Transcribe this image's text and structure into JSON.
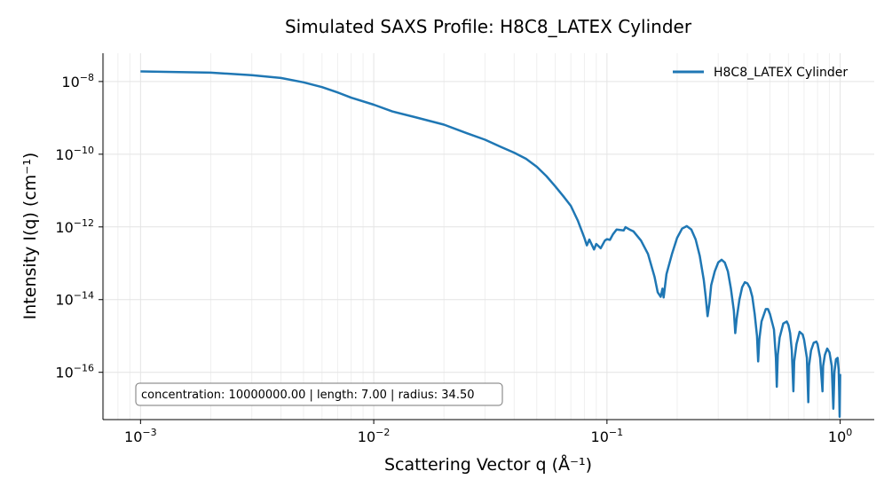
{
  "chart_data": {
    "type": "line",
    "title": "Simulated SAXS Profile: H8C8_LATEX Cylinder",
    "xlabel": "Scattering Vector q (Å⁻¹)",
    "ylabel": "Intensity I(q) (cm⁻¹)",
    "xscale": "log",
    "yscale": "log",
    "xlim": [
      0.00069,
      1.4
    ],
    "ylim": [
      5e-18,
      6e-08
    ],
    "grid": true,
    "legend_position": "top-right",
    "x_ticks": [
      {
        "value": 0.001,
        "mant": "10",
        "exp": "−3"
      },
      {
        "value": 0.01,
        "mant": "10",
        "exp": "−2"
      },
      {
        "value": 0.1,
        "mant": "10",
        "exp": "−1"
      },
      {
        "value": 1,
        "mant": "10",
        "exp": "0"
      }
    ],
    "y_ticks": [
      {
        "value": 1e-16,
        "mant": "10",
        "exp": "−16"
      },
      {
        "value": 1e-14,
        "mant": "10",
        "exp": "−14"
      },
      {
        "value": 1e-12,
        "mant": "10",
        "exp": "−12"
      },
      {
        "value": 1e-10,
        "mant": "10",
        "exp": "−10"
      },
      {
        "value": 1e-08,
        "mant": "10",
        "exp": "−8"
      }
    ],
    "annotation": "concentration: 10000000.00 | length: 7.00 | radius: 34.50",
    "series": [
      {
        "name": "H8C8_LATEX Cylinder",
        "color": "#1f77b4",
        "points": [
          [
            0.001,
            1.9e-08
          ],
          [
            0.002,
            1.75e-08
          ],
          [
            0.003,
            1.5e-08
          ],
          [
            0.004,
            1.25e-08
          ],
          [
            0.005,
            9.5e-09
          ],
          [
            0.006,
            7e-09
          ],
          [
            0.007,
            5e-09
          ],
          [
            0.008,
            3.6e-09
          ],
          [
            0.01,
            2.3e-09
          ],
          [
            0.012,
            1.5e-09
          ],
          [
            0.015,
            1.05e-09
          ],
          [
            0.02,
            6.5e-10
          ],
          [
            0.025,
            3.8e-10
          ],
          [
            0.03,
            2.5e-10
          ],
          [
            0.035,
            1.6e-10
          ],
          [
            0.04,
            1.1e-10
          ],
          [
            0.045,
            7.5e-11
          ],
          [
            0.05,
            4.5e-11
          ],
          [
            0.055,
            2.5e-11
          ],
          [
            0.06,
            1.3e-11
          ],
          [
            0.065,
            7e-12
          ],
          [
            0.07,
            3.8e-12
          ],
          [
            0.075,
            1.5e-12
          ],
          [
            0.08,
            5e-13
          ],
          [
            0.082,
            3.1e-13
          ],
          [
            0.084,
            4.5e-13
          ],
          [
            0.086,
            3.3e-13
          ],
          [
            0.088,
            2.4e-13
          ],
          [
            0.09,
            3.4e-13
          ],
          [
            0.094,
            2.6e-13
          ],
          [
            0.098,
            4.2e-13
          ],
          [
            0.1,
            4.6e-13
          ],
          [
            0.103,
            4.4e-13
          ],
          [
            0.106,
            6.2e-13
          ],
          [
            0.11,
            8.5e-13
          ],
          [
            0.118,
            8e-13
          ],
          [
            0.12,
            9.8e-13
          ],
          [
            0.125,
            8.5e-13
          ],
          [
            0.13,
            7.5e-13
          ],
          [
            0.14,
            4.2e-13
          ],
          [
            0.15,
            1.8e-13
          ],
          [
            0.16,
            4.2e-14
          ],
          [
            0.165,
            1.6e-14
          ],
          [
            0.17,
            1.2e-14
          ],
          [
            0.173,
            2e-14
          ],
          [
            0.175,
            1.15e-14
          ],
          [
            0.18,
            5e-14
          ],
          [
            0.19,
            1.8e-13
          ],
          [
            0.2,
            5e-13
          ],
          [
            0.21,
            9e-13
          ],
          [
            0.22,
            1.05e-12
          ],
          [
            0.23,
            8.5e-13
          ],
          [
            0.24,
            4.5e-13
          ],
          [
            0.25,
            1.6e-13
          ],
          [
            0.26,
            3.5e-14
          ],
          [
            0.265,
            1.2e-14
          ],
          [
            0.27,
            3.5e-15
          ],
          [
            0.275,
            8e-15
          ],
          [
            0.28,
            2.5e-14
          ],
          [
            0.29,
            6e-14
          ],
          [
            0.3,
            1.05e-13
          ],
          [
            0.31,
            1.25e-13
          ],
          [
            0.32,
            1.05e-13
          ],
          [
            0.33,
            6e-14
          ],
          [
            0.34,
            2e-14
          ],
          [
            0.35,
            5e-15
          ],
          [
            0.355,
            1.2e-15
          ],
          [
            0.36,
            3e-15
          ],
          [
            0.37,
            1e-14
          ],
          [
            0.38,
            2.2e-14
          ],
          [
            0.39,
            3e-14
          ],
          [
            0.4,
            2.8e-14
          ],
          [
            0.41,
            2.1e-14
          ],
          [
            0.42,
            1.2e-14
          ],
          [
            0.43,
            4e-15
          ],
          [
            0.44,
            1e-15
          ],
          [
            0.445,
            2e-16
          ],
          [
            0.45,
            8e-16
          ],
          [
            0.46,
            2.5e-15
          ],
          [
            0.48,
            5.5e-15
          ],
          [
            0.49,
            5.5e-15
          ],
          [
            0.5,
            4e-15
          ],
          [
            0.52,
            1.5e-15
          ],
          [
            0.53,
            2.5e-16
          ],
          [
            0.535,
            4e-17
          ],
          [
            0.54,
            3e-16
          ],
          [
            0.55,
            9e-16
          ],
          [
            0.57,
            2.2e-15
          ],
          [
            0.59,
            2.5e-15
          ],
          [
            0.6,
            2e-15
          ],
          [
            0.61,
            1.2e-15
          ],
          [
            0.62,
            4e-16
          ],
          [
            0.63,
            3e-17
          ],
          [
            0.635,
            2e-16
          ],
          [
            0.65,
            6e-16
          ],
          [
            0.67,
            1.3e-15
          ],
          [
            0.69,
            1.1e-15
          ],
          [
            0.7,
            8e-16
          ],
          [
            0.72,
            2.5e-16
          ],
          [
            0.73,
            1.5e-17
          ],
          [
            0.735,
            1.5e-16
          ],
          [
            0.75,
            4e-16
          ],
          [
            0.77,
            6.5e-16
          ],
          [
            0.79,
            7e-16
          ],
          [
            0.8,
            6e-16
          ],
          [
            0.82,
            2.5e-16
          ],
          [
            0.84,
            3e-17
          ],
          [
            0.845,
            1.5e-16
          ],
          [
            0.86,
            3e-16
          ],
          [
            0.88,
            4.5e-16
          ],
          [
            0.9,
            3.5e-16
          ],
          [
            0.92,
            1.5e-16
          ],
          [
            0.935,
            1e-17
          ],
          [
            0.945,
            1e-16
          ],
          [
            0.96,
            2.3e-16
          ],
          [
            0.975,
            2.5e-16
          ],
          [
            0.985,
            1.2e-16
          ],
          [
            0.99,
            3e-17
          ],
          [
            0.995,
            6e-18
          ],
          [
            1.0,
            9e-17
          ]
        ]
      }
    ]
  }
}
